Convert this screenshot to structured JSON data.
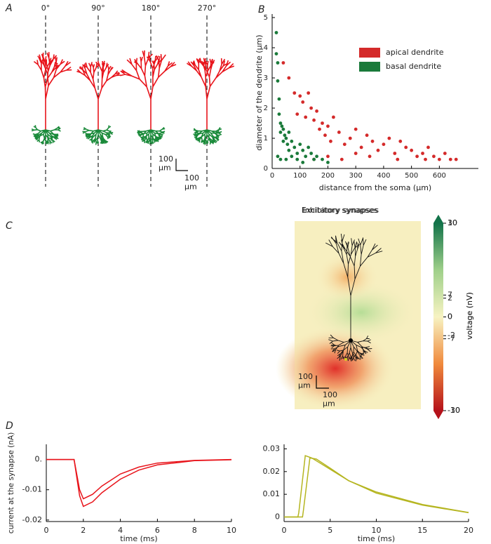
{
  "chart_data": [
    {
      "type": "morphology",
      "panel_label": "A",
      "angles": [
        "0°",
        "90°",
        "180°",
        "270°"
      ],
      "scale_bar_labels": [
        "100 µm",
        "100 µm"
      ],
      "colors": {
        "apical": "#e8141b",
        "basal": "#1a8a3a"
      }
    },
    {
      "type": "scatter",
      "panel_label": "B",
      "x_label": "distance from the soma (µm)",
      "y_label": "diameter of the dendrite (µm)",
      "xlim": [
        0,
        740
      ],
      "xticks": [
        0,
        100,
        200,
        300,
        400,
        500,
        600
      ],
      "ylim": [
        0,
        5
      ],
      "yticks": [
        0,
        1,
        2,
        3,
        4,
        5
      ],
      "series": [
        {
          "name": "apical dendrite",
          "color": "#d42a2a",
          "x": [
            40,
            60,
            80,
            90,
            100,
            110,
            120,
            130,
            140,
            150,
            160,
            170,
            180,
            190,
            200,
            210,
            220,
            240,
            260,
            280,
            300,
            320,
            340,
            360,
            380,
            400,
            420,
            440,
            460,
            480,
            500,
            520,
            540,
            560,
            580,
            600,
            620,
            640,
            660,
            150,
            200,
            250,
            300,
            350,
            450,
            550
          ],
          "values": [
            3.5,
            3.0,
            2.5,
            1.8,
            2.4,
            2.2,
            1.7,
            2.5,
            2.0,
            1.6,
            1.9,
            1.3,
            1.5,
            1.1,
            1.4,
            0.9,
            1.7,
            1.2,
            0.8,
            1.0,
            1.3,
            0.7,
            1.1,
            0.9,
            0.6,
            0.8,
            1.0,
            0.5,
            0.9,
            0.7,
            0.6,
            0.4,
            0.5,
            0.7,
            0.4,
            0.3,
            0.5,
            0.3,
            0.3,
            0.3,
            0.4,
            0.3,
            0.5,
            0.4,
            0.3,
            0.3
          ]
        },
        {
          "name": "basal dendrite",
          "color": "#1a7a3a",
          "x": [
            15,
            15,
            20,
            20,
            25,
            25,
            30,
            30,
            35,
            40,
            40,
            45,
            50,
            55,
            60,
            60,
            70,
            80,
            90,
            100,
            110,
            120,
            130,
            140,
            150,
            160,
            180,
            200,
            20,
            30,
            50,
            70,
            90,
            110
          ],
          "values": [
            4.5,
            3.8,
            3.5,
            2.9,
            2.3,
            1.8,
            1.5,
            1.2,
            1.4,
            1.3,
            0.9,
            1.1,
            1.0,
            0.8,
            1.2,
            0.6,
            0.9,
            0.7,
            0.5,
            0.8,
            0.6,
            0.4,
            0.7,
            0.5,
            0.3,
            0.4,
            0.3,
            0.2,
            0.4,
            0.3,
            0.3,
            0.4,
            0.3,
            0.2
          ]
        }
      ]
    },
    {
      "type": "heatmap",
      "panel_label": "C",
      "title": "Inhibitory synapses",
      "colorbar_label": "voltage (nV)",
      "clim": [
        -10,
        10
      ],
      "cticks": [
        10,
        2,
        0,
        -2,
        -10
      ],
      "scale_bar_labels": [
        "100 µm",
        "100 µm"
      ]
    },
    {
      "type": "heatmap",
      "title": "Excitatory synapses",
      "colorbar_label": "voltage (nV)",
      "clim": [
        -30,
        30
      ],
      "cticks": [
        30,
        7,
        0,
        -7,
        -30
      ],
      "scale_bar_labels": [
        "100 µm",
        "100 µm"
      ]
    },
    {
      "type": "line",
      "panel_label": "D",
      "y_label": "current at the synapse (nA)",
      "x_label": "time (ms)",
      "xlim": [
        0,
        10
      ],
      "xticks": [
        0,
        2,
        4,
        6,
        8,
        10
      ],
      "ylim": [
        -0.0205,
        0.005
      ],
      "yticks": [
        {
          "value": 0,
          "label": "0."
        },
        -0.01,
        -0.02
      ],
      "series": [
        {
          "color": "#e8141b",
          "x": [
            0,
            1.5,
            1.8,
            2,
            2.5,
            3,
            4,
            5,
            6,
            8,
            10
          ],
          "values": [
            0,
            0,
            -0.012,
            -0.0155,
            -0.014,
            -0.011,
            -0.0065,
            -0.0035,
            -0.0018,
            -0.0004,
            -0.0001
          ]
        },
        {
          "color": "#e8141b",
          "x": [
            0,
            1.5,
            1.8,
            2,
            2.5,
            3,
            4,
            5,
            6,
            8,
            10
          ],
          "values": [
            0,
            0,
            -0.01,
            -0.013,
            -0.0115,
            -0.0088,
            -0.0048,
            -0.0025,
            -0.0012,
            -0.0003,
            0
          ]
        }
      ]
    },
    {
      "type": "line",
      "x_label": "time (ms)",
      "xlim": [
        0,
        20
      ],
      "xticks": [
        0,
        5,
        10,
        15,
        20
      ],
      "ylim": [
        -0.002,
        0.032
      ],
      "yticks": [
        0,
        0.01,
        0.02,
        0.03
      ],
      "series": [
        {
          "color": "#b5b520",
          "x": [
            0,
            1.5,
            1.6,
            2.3,
            3,
            5,
            7,
            10,
            15,
            20
          ],
          "values": [
            0,
            0,
            0.002,
            0.027,
            0.026,
            0.021,
            0.016,
            0.011,
            0.0055,
            0.002
          ]
        },
        {
          "color": "#b5b520",
          "x": [
            0,
            2,
            2.1,
            2.8,
            3.5,
            5,
            7,
            10,
            15,
            20
          ],
          "values": [
            0,
            0,
            0.003,
            0.026,
            0.0255,
            0.0215,
            0.016,
            0.0105,
            0.0052,
            0.0019
          ]
        }
      ]
    }
  ]
}
